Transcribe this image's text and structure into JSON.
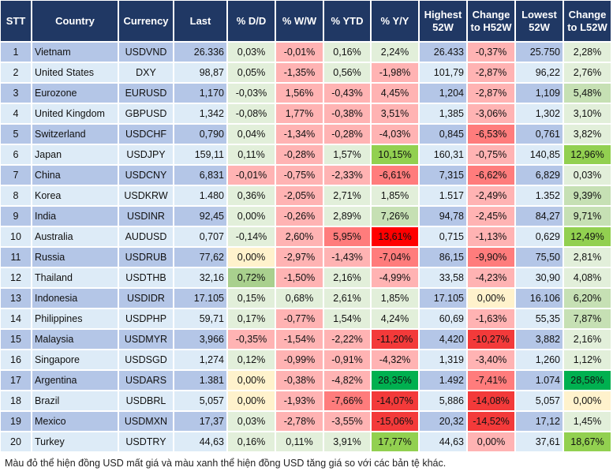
{
  "headers": [
    "STT",
    "Country",
    "Currency",
    "Last",
    "% D/D",
    "% W/W",
    "% YTD",
    "% Y/Y",
    "Highest 52W",
    "Change to H52W",
    "Lowest 52W",
    "Change to L52W"
  ],
  "palette": {
    "g1": "#e2efda",
    "g2": "#c6e0b4",
    "g3": "#a9d08e",
    "g4": "#92d050",
    "g5": "#00b050",
    "y": "#fff2cc",
    "r1": "#ffb3b3",
    "r2": "#ff7c7c",
    "r3": "#f33a3a",
    "r4": "#ff0000"
  },
  "rows": [
    {
      "stt": "1",
      "country": "Vietnam",
      "currency": "USDVND",
      "last": "26.336",
      "dd": "0,03%",
      "ww": "-0,01%",
      "ytd": "0,16%",
      "yy": "2,24%",
      "high": "26.433",
      "h52": "-0,37%",
      "low": "25.750",
      "l52": "2,28%",
      "colors": [
        "g1",
        "r1",
        "g1",
        "g1",
        "r1",
        "g1"
      ]
    },
    {
      "stt": "2",
      "country": "United States",
      "currency": "DXY",
      "last": "98,87",
      "dd": "0,05%",
      "ww": "-1,35%",
      "ytd": "0,56%",
      "yy": "-1,98%",
      "high": "101,79",
      "h52": "-2,87%",
      "low": "96,22",
      "l52": "2,76%",
      "colors": [
        "g1",
        "r1",
        "g1",
        "r1",
        "r1",
        "g1"
      ]
    },
    {
      "stt": "3",
      "country": "Eurozone",
      "currency": "EURUSD",
      "last": "1,170",
      "dd": "-0,03%",
      "ww": "1,56%",
      "ytd": "-0,43%",
      "yy": "4,45%",
      "high": "1,204",
      "h52": "-2,87%",
      "low": "1,109",
      "l52": "5,48%",
      "colors": [
        "g1",
        "r1",
        "r1",
        "r1",
        "r1",
        "g2"
      ]
    },
    {
      "stt": "4",
      "country": "United Kingdom",
      "currency": "GBPUSD",
      "last": "1,342",
      "dd": "-0,08%",
      "ww": "1,77%",
      "ytd": "-0,38%",
      "yy": "3,51%",
      "high": "1,385",
      "h52": "-3,06%",
      "low": "1,302",
      "l52": "3,10%",
      "colors": [
        "g1",
        "r1",
        "r1",
        "r1",
        "r1",
        "g1"
      ]
    },
    {
      "stt": "5",
      "country": "Switzerland",
      "currency": "USDCHF",
      "last": "0,790",
      "dd": "0,04%",
      "ww": "-1,34%",
      "ytd": "-0,28%",
      "yy": "-4,03%",
      "high": "0,845",
      "h52": "-6,53%",
      "low": "0,761",
      "l52": "3,82%",
      "colors": [
        "g1",
        "r1",
        "r1",
        "r1",
        "r2",
        "g1"
      ]
    },
    {
      "stt": "6",
      "country": "Japan",
      "currency": "USDJPY",
      "last": "159,11",
      "dd": "0,11%",
      "ww": "-0,28%",
      "ytd": "1,57%",
      "yy": "10,15%",
      "high": "160,31",
      "h52": "-0,75%",
      "low": "140,85",
      "l52": "12,96%",
      "colors": [
        "g1",
        "r1",
        "g1",
        "g4",
        "r1",
        "g4"
      ]
    },
    {
      "stt": "7",
      "country": "China",
      "currency": "USDCNY",
      "last": "6,831",
      "dd": "-0,01%",
      "ww": "-0,75%",
      "ytd": "-2,33%",
      "yy": "-6,61%",
      "high": "7,315",
      "h52": "-6,62%",
      "low": "6,829",
      "l52": "0,03%",
      "colors": [
        "r1",
        "r1",
        "r1",
        "r2",
        "r2",
        "g1"
      ]
    },
    {
      "stt": "8",
      "country": "Korea",
      "currency": "USDKRW",
      "last": "1.480",
      "dd": "0,36%",
      "ww": "-2,05%",
      "ytd": "2,71%",
      "yy": "1,85%",
      "high": "1.517",
      "h52": "-2,49%",
      "low": "1.352",
      "l52": "9,39%",
      "colors": [
        "g1",
        "r1",
        "g1",
        "g1",
        "r1",
        "g2"
      ]
    },
    {
      "stt": "9",
      "country": "India",
      "currency": "USDINR",
      "last": "92,45",
      "dd": "0,00%",
      "ww": "-0,26%",
      "ytd": "2,89%",
      "yy": "7,26%",
      "high": "94,78",
      "h52": "-2,45%",
      "low": "84,27",
      "l52": "9,71%",
      "colors": [
        "g1",
        "r1",
        "g1",
        "g2",
        "r1",
        "g2"
      ]
    },
    {
      "stt": "10",
      "country": "Australia",
      "currency": "AUDUSD",
      "last": "0,707",
      "dd": "-0,14%",
      "ww": "2,60%",
      "ytd": "5,95%",
      "yy": "13,61%",
      "high": "0,715",
      "h52": "-1,13%",
      "low": "0,629",
      "l52": "12,49%",
      "colors": [
        "g1",
        "r1",
        "r2",
        "r4",
        "r1",
        "g4"
      ]
    },
    {
      "stt": "11",
      "country": "Russia",
      "currency": "USDRUB",
      "last": "77,62",
      "dd": "0,00%",
      "ww": "-2,97%",
      "ytd": "-1,43%",
      "yy": "-7,04%",
      "high": "86,15",
      "h52": "-9,90%",
      "low": "75,50",
      "l52": "2,81%",
      "colors": [
        "y",
        "r1",
        "r1",
        "r2",
        "r2",
        "g1"
      ]
    },
    {
      "stt": "12",
      "country": "Thailand",
      "currency": "USDTHB",
      "last": "32,16",
      "dd": "0,72%",
      "ww": "-1,50%",
      "ytd": "2,16%",
      "yy": "-4,99%",
      "high": "33,58",
      "h52": "-4,23%",
      "low": "30,90",
      "l52": "4,08%",
      "colors": [
        "g3",
        "r1",
        "g1",
        "r1",
        "r1",
        "g1"
      ]
    },
    {
      "stt": "13",
      "country": "Indonesia",
      "currency": "USDIDR",
      "last": "17.105",
      "dd": "0,15%",
      "ww": "0,68%",
      "ytd": "2,61%",
      "yy": "1,85%",
      "high": "17.105",
      "h52": "0,00%",
      "low": "16.106",
      "l52": "6,20%",
      "colors": [
        "g1",
        "g1",
        "g1",
        "g1",
        "y",
        "g2"
      ]
    },
    {
      "stt": "14",
      "country": "Philippines",
      "currency": "USDPHP",
      "last": "59,71",
      "dd": "0,17%",
      "ww": "-0,77%",
      "ytd": "1,54%",
      "yy": "4,24%",
      "high": "60,69",
      "h52": "-1,63%",
      "low": "55,35",
      "l52": "7,87%",
      "colors": [
        "g1",
        "r1",
        "g1",
        "g1",
        "r1",
        "g2"
      ]
    },
    {
      "stt": "15",
      "country": "Malaysia",
      "currency": "USDMYR",
      "last": "3,966",
      "dd": "-0,35%",
      "ww": "-1,54%",
      "ytd": "-2,22%",
      "yy": "-11,20%",
      "high": "4,420",
      "h52": "-10,27%",
      "low": "3,882",
      "l52": "2,16%",
      "colors": [
        "r1",
        "r1",
        "r1",
        "r3",
        "r3",
        "g1"
      ]
    },
    {
      "stt": "16",
      "country": "Singapore",
      "currency": "USDSGD",
      "last": "1,274",
      "dd": "0,12%",
      "ww": "-0,99%",
      "ytd": "-0,91%",
      "yy": "-4,32%",
      "high": "1,319",
      "h52": "-3,40%",
      "low": "1,260",
      "l52": "1,12%",
      "colors": [
        "g1",
        "r1",
        "r1",
        "r1",
        "r1",
        "g1"
      ]
    },
    {
      "stt": "17",
      "country": "Argentina",
      "currency": "USDARS",
      "last": "1.381",
      "dd": "0,00%",
      "ww": "-0,38%",
      "ytd": "-4,82%",
      "yy": "28,35%",
      "high": "1.492",
      "h52": "-7,41%",
      "low": "1.074",
      "l52": "28,58%",
      "colors": [
        "y",
        "r1",
        "r1",
        "g5",
        "r2",
        "g5"
      ]
    },
    {
      "stt": "18",
      "country": "Brazil",
      "currency": "USDBRL",
      "last": "5,057",
      "dd": "0,00%",
      "ww": "-1,93%",
      "ytd": "-7,66%",
      "yy": "-14,07%",
      "high": "5,886",
      "h52": "-14,08%",
      "low": "5,057",
      "l52": "0,00%",
      "colors": [
        "y",
        "r1",
        "r2",
        "r3",
        "r3",
        "y"
      ]
    },
    {
      "stt": "19",
      "country": "Mexico",
      "currency": "USDMXN",
      "last": "17,37",
      "dd": "0,03%",
      "ww": "-2,78%",
      "ytd": "-3,55%",
      "yy": "-15,06%",
      "high": "20,32",
      "h52": "-14,52%",
      "low": "17,12",
      "l52": "1,45%",
      "colors": [
        "g1",
        "r1",
        "r1",
        "r3",
        "r3",
        "g1"
      ]
    },
    {
      "stt": "20",
      "country": "Turkey",
      "currency": "USDTRY",
      "last": "44,63",
      "dd": "0,16%",
      "ww": "0,11%",
      "ytd": "3,91%",
      "yy": "17,77%",
      "high": "44,63",
      "h52": "0,00%",
      "low": "37,61",
      "l52": "18,67%",
      "colors": [
        "g1",
        "g1",
        "g1",
        "g4",
        "r1",
        "g4"
      ]
    }
  ],
  "footer": "Màu đỏ thể hiện đồng USD mất giá và màu xanh thể hiện đồng USD tăng giá so với các bản tệ khác."
}
